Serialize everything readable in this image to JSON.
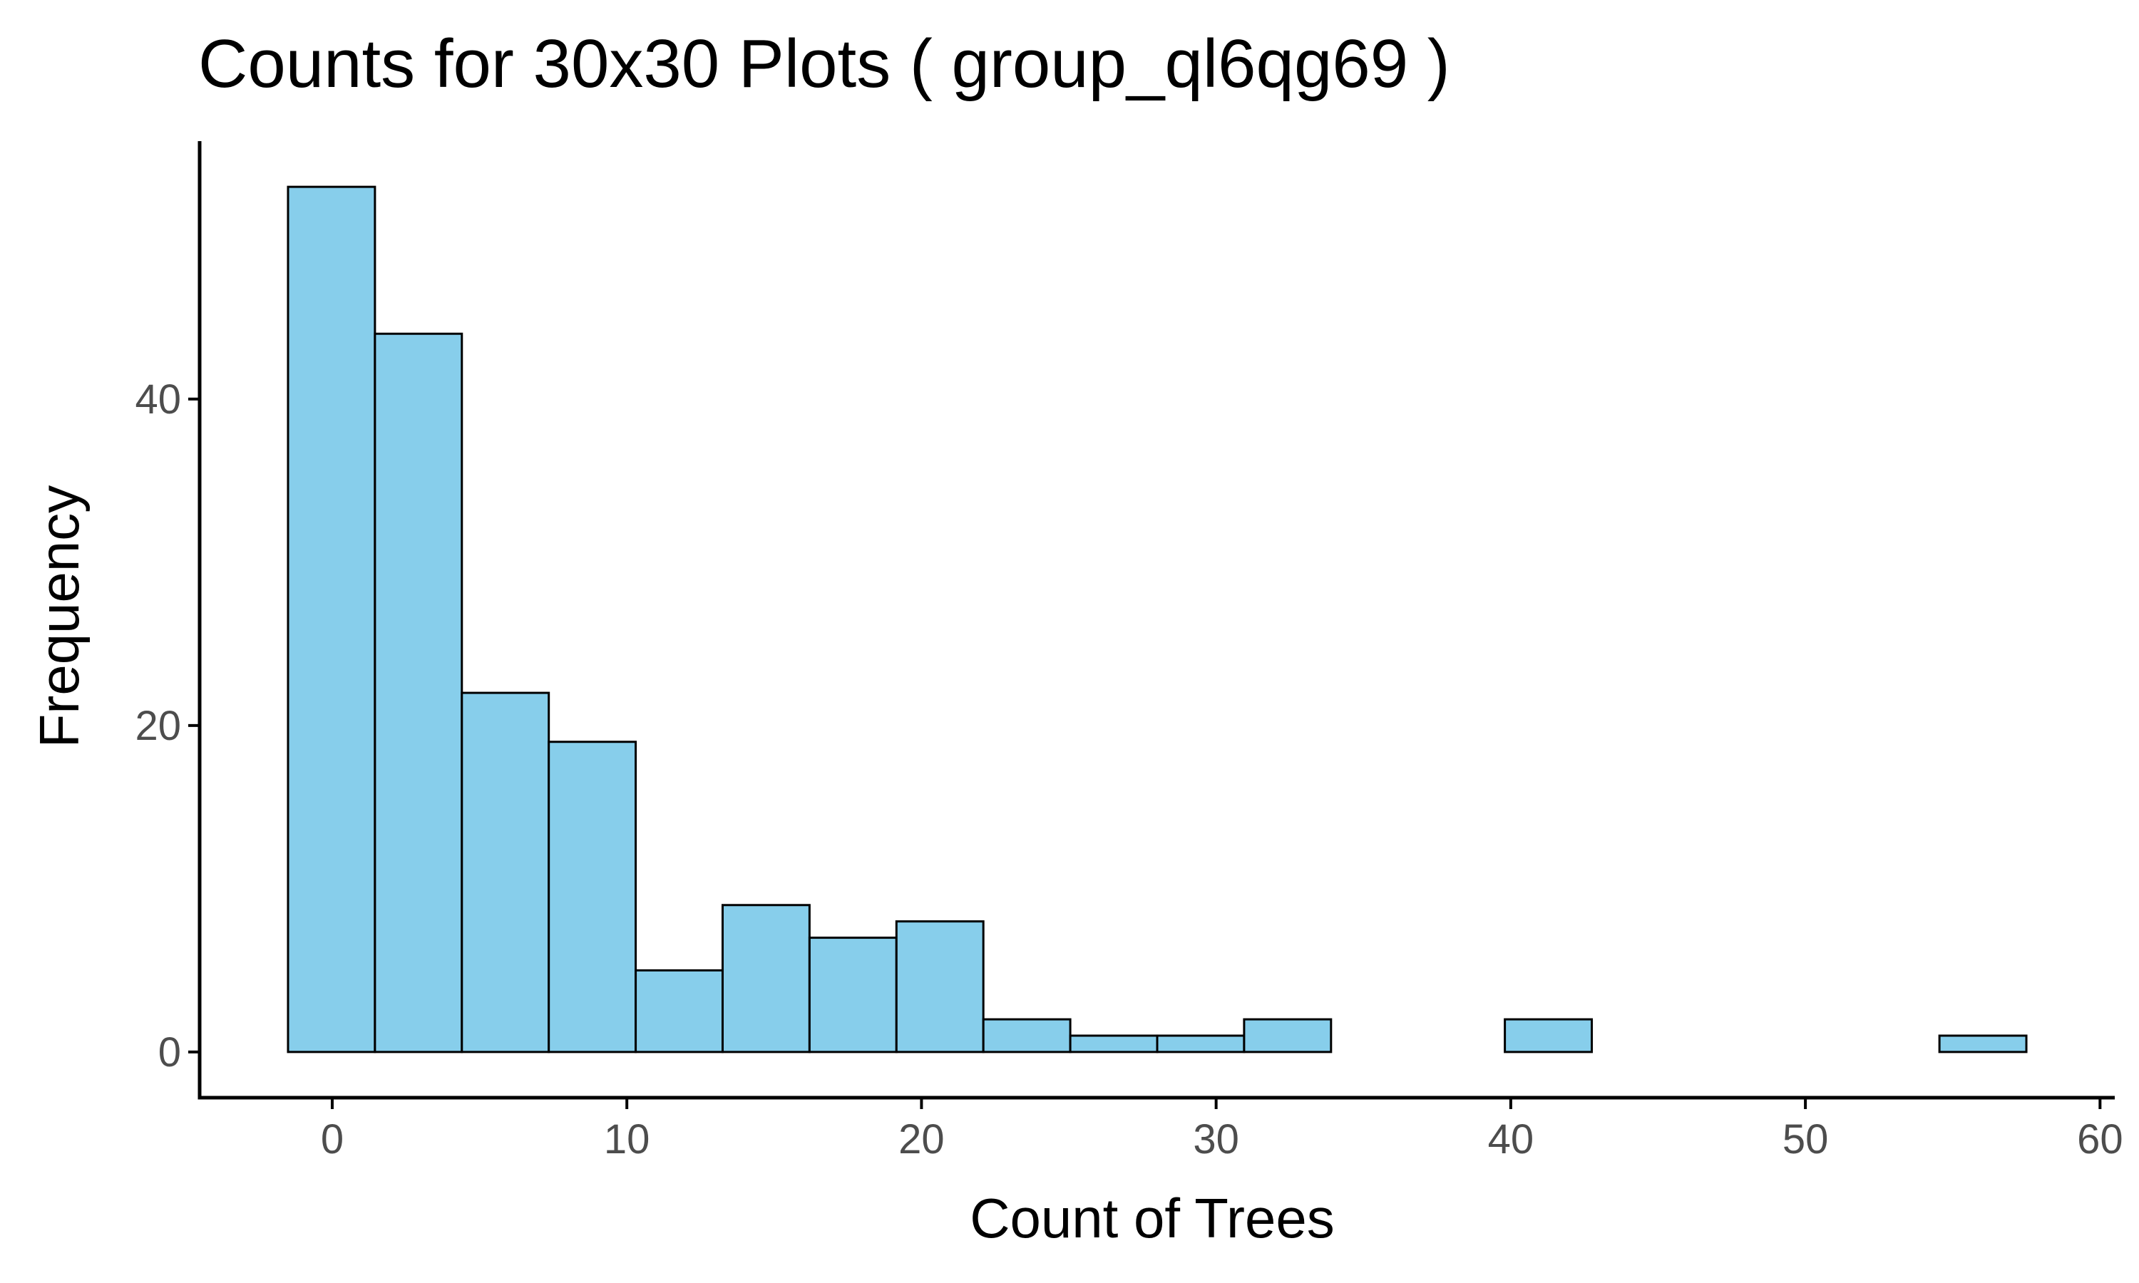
{
  "chart_data": {
    "type": "bar",
    "title": "Counts for 30x30 Plots ( group_ql6qg69 )",
    "xlabel": "Count of Trees",
    "ylabel": "Frequency",
    "bin_width": 2.95,
    "bins": [
      {
        "x0": -1.5,
        "x1": 1.45,
        "count": 53
      },
      {
        "x0": 1.45,
        "x1": 4.4,
        "count": 44
      },
      {
        "x0": 4.4,
        "x1": 7.35,
        "count": 22
      },
      {
        "x0": 7.35,
        "x1": 10.3,
        "count": 19
      },
      {
        "x0": 10.3,
        "x1": 13.25,
        "count": 5
      },
      {
        "x0": 13.25,
        "x1": 16.2,
        "count": 9
      },
      {
        "x0": 16.2,
        "x1": 19.15,
        "count": 7
      },
      {
        "x0": 19.15,
        "x1": 22.1,
        "count": 8
      },
      {
        "x0": 22.1,
        "x1": 25.05,
        "count": 2
      },
      {
        "x0": 25.05,
        "x1": 28.0,
        "count": 1
      },
      {
        "x0": 28.0,
        "x1": 30.95,
        "count": 1
      },
      {
        "x0": 30.95,
        "x1": 33.9,
        "count": 2
      },
      {
        "x0": 33.9,
        "x1": 36.85,
        "count": 0
      },
      {
        "x0": 36.85,
        "x1": 39.8,
        "count": 0
      },
      {
        "x0": 39.8,
        "x1": 42.75,
        "count": 2
      },
      {
        "x0": 42.75,
        "x1": 45.7,
        "count": 0
      },
      {
        "x0": 45.7,
        "x1": 48.65,
        "count": 0
      },
      {
        "x0": 48.65,
        "x1": 51.6,
        "count": 0
      },
      {
        "x0": 51.6,
        "x1": 54.55,
        "count": 0
      },
      {
        "x0": 54.55,
        "x1": 57.5,
        "count": 1
      }
    ],
    "xlim": [
      -4.5,
      60.5
    ],
    "ylim": [
      -2.8,
      55.8
    ],
    "x_ticks": [
      0,
      10,
      20,
      30,
      40,
      50,
      60
    ],
    "y_ticks": [
      0,
      20,
      40
    ],
    "grid": false,
    "legend": "none",
    "colors": {
      "bar_fill": "#87ceeb",
      "bar_stroke": "#000000",
      "axis": "#000000",
      "tick_label": "#4d4d4d"
    }
  }
}
